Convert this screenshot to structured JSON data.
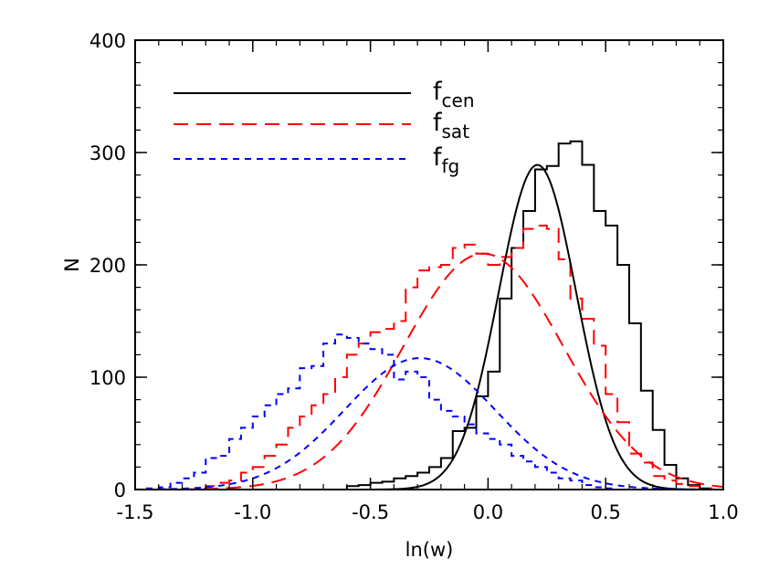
{
  "chart_data": {
    "type": "line",
    "title": "",
    "xlabel": "ln(w)",
    "ylabel": "N",
    "xlim": [
      -1.5,
      1.0
    ],
    "ylim": [
      0,
      400
    ],
    "xticks": [
      -1.5,
      -1.0,
      -0.5,
      0.0,
      0.5,
      1.0
    ],
    "xtick_labels": [
      "-1.5",
      "-1.0",
      "-0.5",
      "0.0",
      "0.5",
      "1.0"
    ],
    "yticks": [
      0,
      100,
      200,
      300,
      400
    ],
    "ytick_labels": [
      "0",
      "100",
      "200",
      "300",
      "400"
    ],
    "legend_position": "top-left",
    "legend": [
      {
        "base": "f",
        "sub": "cen",
        "color": "#000000",
        "dash": "solid"
      },
      {
        "base": "f",
        "sub": "sat",
        "color": "#ff0000",
        "dash": "long-dash"
      },
      {
        "base": "f",
        "sub": "fg",
        "color": "#0000ff",
        "dash": "short-dash"
      }
    ],
    "histograms": [
      {
        "legend_index": 0,
        "color": "#000000",
        "bin_width": 0.05,
        "bins_start": -1.5,
        "counts": [
          0,
          0,
          0,
          0,
          0,
          0,
          0,
          0,
          0,
          0,
          0,
          0,
          0,
          0,
          0,
          0,
          0,
          0,
          3,
          4,
          6,
          7,
          10,
          12,
          15,
          20,
          28,
          52,
          55,
          83,
          105,
          170,
          215,
          248,
          285,
          288,
          308,
          310,
          289,
          248,
          235,
          200,
          148,
          88,
          53,
          22,
          10,
          4,
          1,
          0
        ]
      },
      {
        "legend_index": 1,
        "color": "#ff0000",
        "bin_width": 0.05,
        "bins_start": -1.5,
        "counts": [
          0,
          0,
          0,
          0,
          0,
          0,
          3,
          6,
          8,
          15,
          20,
          30,
          40,
          55,
          65,
          75,
          85,
          100,
          120,
          130,
          140,
          143,
          150,
          180,
          195,
          198,
          200,
          215,
          218,
          210,
          200,
          207,
          215,
          232,
          235,
          232,
          205,
          170,
          152,
          128,
          85,
          60,
          32,
          24,
          12,
          8,
          5,
          3,
          1,
          0
        ]
      },
      {
        "legend_index": 2,
        "color": "#0000ff",
        "bin_width": 0.05,
        "bins_start": -1.5,
        "counts": [
          0,
          1,
          2,
          6,
          10,
          15,
          28,
          30,
          45,
          55,
          65,
          75,
          85,
          90,
          108,
          110,
          130,
          138,
          135,
          130,
          125,
          120,
          98,
          105,
          100,
          80,
          70,
          65,
          58,
          50,
          45,
          40,
          30,
          25,
          20,
          15,
          10,
          8,
          4,
          2,
          1,
          0,
          0,
          0,
          0,
          0,
          0,
          0,
          0,
          0
        ]
      }
    ],
    "fits": [
      {
        "legend_index": 0,
        "color": "#000000",
        "form": "gaussian",
        "amplitude": 289,
        "mean": 0.21,
        "sigma": 0.165
      },
      {
        "legend_index": 1,
        "color": "#ff0000",
        "form": "gaussian",
        "amplitude": 210,
        "mean": -0.02,
        "sigma": 0.34
      },
      {
        "legend_index": 2,
        "color": "#0000ff",
        "form": "gaussian",
        "amplitude": 117,
        "mean": -0.29,
        "sigma": 0.32
      }
    ]
  }
}
